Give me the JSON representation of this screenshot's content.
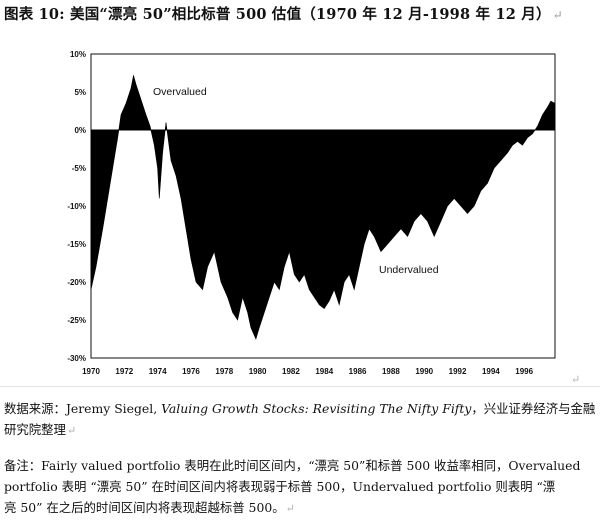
{
  "chart_data": {
    "type": "area",
    "title": "图表 10: 美国“漂亮 50”相比标普 500 估值（1970 年 12 月-1998 年 12 月）",
    "xlabel": "",
    "ylabel": "",
    "x_ticks": [
      "1970",
      "1972",
      "1974",
      "1976",
      "1978",
      "1980",
      "1982",
      "1984",
      "1986",
      "1988",
      "1990",
      "1992",
      "1994",
      "1996"
    ],
    "y_ticks": [
      "10%",
      "5%",
      "0%",
      "-5%",
      "-10%",
      "-15%",
      "-20%",
      "-25%",
      "-30%"
    ],
    "xlim": [
      1970,
      1997.85
    ],
    "ylim": [
      -30,
      10
    ],
    "grid": false,
    "annotations": [
      "Overvalued",
      "Undervalued"
    ],
    "x": [
      1970.0,
      1970.3,
      1970.7,
      1971.0,
      1971.3,
      1971.6,
      1971.8,
      1972.1,
      1972.4,
      1972.55,
      1972.7,
      1973.0,
      1973.3,
      1973.55,
      1973.8,
      1974.0,
      1974.1,
      1974.3,
      1974.5,
      1974.8,
      1975.1,
      1975.4,
      1975.7,
      1976.0,
      1976.3,
      1976.7,
      1977.0,
      1977.4,
      1977.8,
      1978.2,
      1978.5,
      1978.8,
      1979.1,
      1979.4,
      1979.6,
      1979.9,
      1980.1,
      1980.4,
      1980.7,
      1981.0,
      1981.3,
      1981.6,
      1981.9,
      1982.2,
      1982.5,
      1982.8,
      1983.1,
      1983.4,
      1983.7,
      1984.0,
      1984.3,
      1984.6,
      1984.9,
      1985.2,
      1985.5,
      1985.8,
      1986.1,
      1986.4,
      1986.7,
      1987.0,
      1987.4,
      1987.8,
      1988.2,
      1988.6,
      1989.0,
      1989.4,
      1989.8,
      1990.2,
      1990.6,
      1991.0,
      1991.4,
      1991.8,
      1992.2,
      1992.6,
      1993.0,
      1993.4,
      1993.8,
      1994.2,
      1994.6,
      1995.0,
      1995.3,
      1995.6,
      1995.9,
      1996.2,
      1996.5,
      1996.8,
      1997.1,
      1997.4,
      1997.6,
      1997.85
    ],
    "values": [
      -21,
      -18,
      -13,
      -9,
      -5,
      -1,
      2,
      3.5,
      5.5,
      7.2,
      6,
      4,
      2,
      0.5,
      -2,
      -5,
      -9,
      -3,
      1,
      -4,
      -6,
      -9,
      -13,
      -17,
      -20,
      -21,
      -18,
      -16,
      -20,
      -22,
      -24,
      -25,
      -22,
      -24,
      -26,
      -27.5,
      -26,
      -24,
      -22,
      -20,
      -21,
      -18,
      -16,
      -19,
      -20,
      -19,
      -21,
      -22,
      -23,
      -23.5,
      -22.5,
      -21,
      -23,
      -20,
      -19,
      -21,
      -18,
      -15,
      -13,
      -14,
      -16,
      -15,
      -14,
      -13,
      -14,
      -12,
      -11,
      -12,
      -14,
      -12,
      -10,
      -9,
      -10,
      -11,
      -10,
      -8,
      -7,
      -5,
      -4,
      -3,
      -2,
      -1.5,
      -2,
      -1,
      -0.5,
      0.5,
      2,
      3,
      3.8,
      3.5
    ]
  },
  "source_line": {
    "prefix": "数据来源：Jeremy Siegel, ",
    "italic": "Valuing Growth Stocks: Revisiting The Nifty Fifty",
    "suffix": "，兴业证券经济与金融",
    "line2": "研究院整理"
  },
  "note": {
    "line1": "备注：Fairly valued portfolio 表明在此时间区间内，“漂亮 50”和标普 500 收益率相同，Overvalued",
    "line2": "portfolio 表明 “漂亮 50” 在时间区间内将表现弱于标普 500，Undervalued portfolio 则表明 “漂",
    "line3": "亮 50” 在之后的时间区间内将表现超越标普 500。"
  },
  "marks": {
    "return": "↵"
  }
}
